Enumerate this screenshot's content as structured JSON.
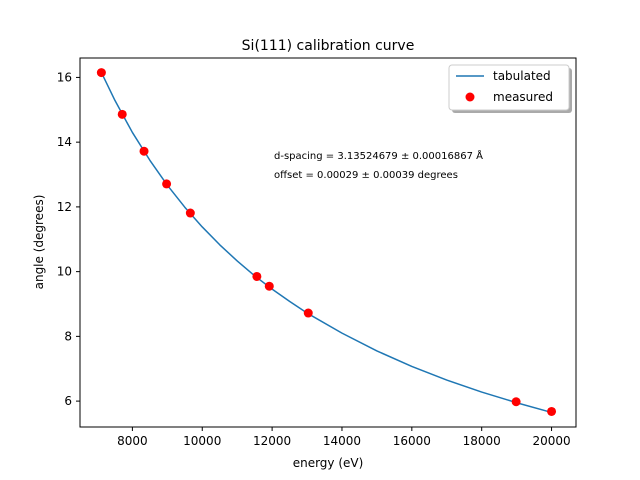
{
  "chart_data": {
    "type": "line",
    "title": "Si(111) calibration curve",
    "xlabel": "energy (eV)",
    "ylabel": "angle (degrees)",
    "xlim": [
      6500,
      20700
    ],
    "ylim": [
      5.2,
      16.6
    ],
    "xticks": [
      8000,
      10000,
      12000,
      14000,
      16000,
      18000,
      20000
    ],
    "yticks": [
      6,
      8,
      10,
      12,
      14,
      16
    ],
    "grid": false,
    "legend_position": "top-right",
    "series": [
      {
        "name": "tabulated",
        "kind": "line",
        "color": "#1f77b4",
        "x": [
          7100,
          7500,
          8000,
          8500,
          9000,
          9500,
          10000,
          10500,
          11000,
          11500,
          12000,
          12500,
          13000,
          14000,
          15000,
          16000,
          17000,
          18000,
          19000,
          20000
        ],
        "y": [
          16.18,
          15.29,
          14.3,
          13.44,
          12.67,
          11.99,
          11.38,
          10.83,
          10.33,
          9.87,
          9.46,
          9.08,
          8.72,
          8.1,
          7.55,
          7.07,
          6.65,
          6.28,
          5.95,
          5.65
        ]
      },
      {
        "name": "measured",
        "kind": "scatter",
        "color": "#ff0000",
        "x": [
          7112,
          7709,
          8333,
          8979,
          9659,
          11564,
          11919,
          13035,
          18986,
          20000
        ],
        "y": [
          16.15,
          14.86,
          13.72,
          12.71,
          11.81,
          9.85,
          9.55,
          8.72,
          5.98,
          5.68
        ]
      }
    ],
    "annotations": [
      "d-spacing = 3.13524679 ± 0.00016867 Å",
      "offset = 0.00029 ± 0.00039 degrees"
    ]
  }
}
